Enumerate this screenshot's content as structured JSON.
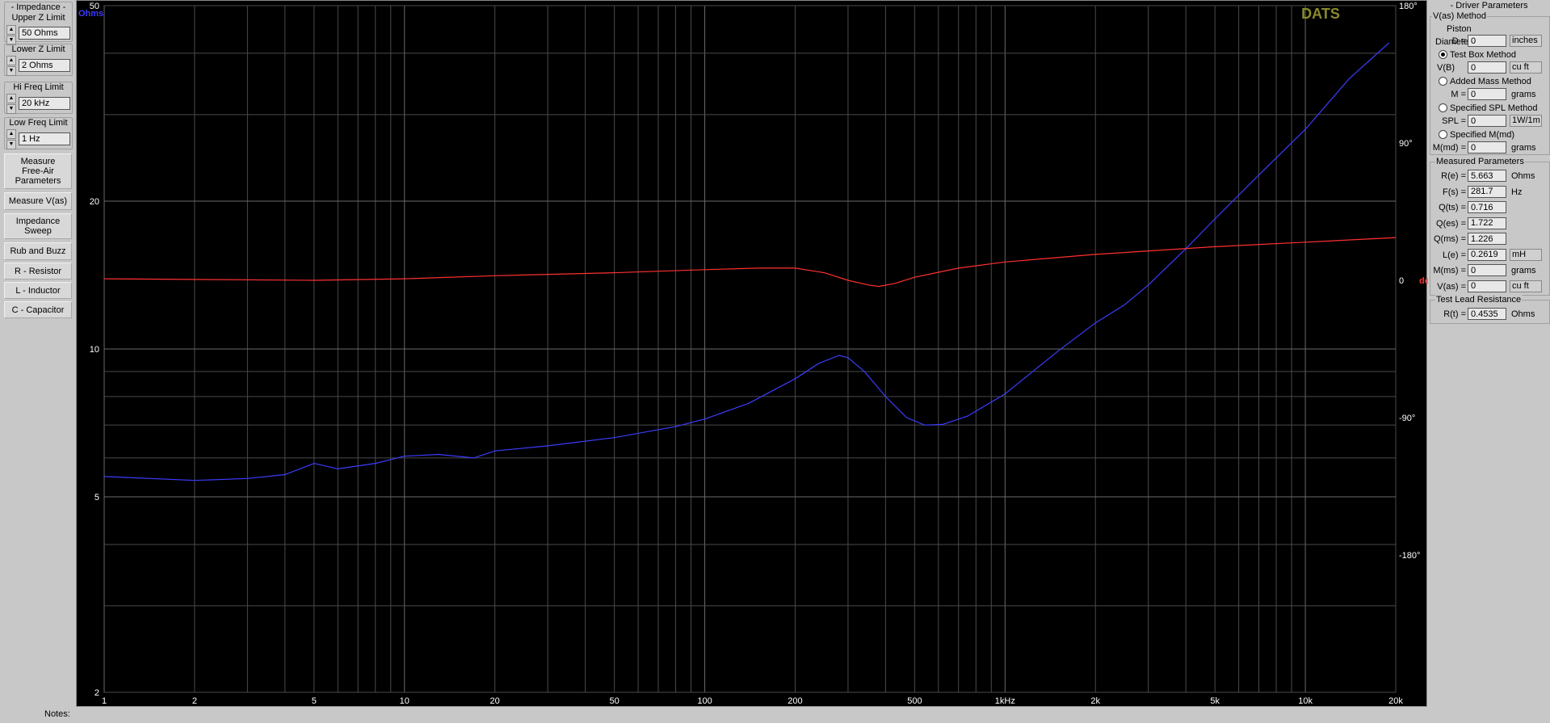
{
  "left_panel": {
    "groups": [
      {
        "label": "- Impedance -\nUpper Z Limit",
        "value": "50 Ohms"
      },
      {
        "label": "Lower Z Limit",
        "value": "2 Ohms"
      },
      {
        "label": "Hi Freq Limit",
        "value": "20 kHz"
      },
      {
        "label": "Low Freq Limit",
        "value": "1 Hz"
      }
    ],
    "buttons": [
      "Measure\nFree-Air\nParameters",
      "Measure V(as)",
      "Impedance\nSweep",
      "Rub and Buzz",
      "R - Resistor",
      "L - Inductor",
      "C - Capacitor"
    ],
    "spin_up": "▲",
    "spin_down": "▼",
    "notes_label": "Notes:"
  },
  "chart_data": {
    "type": "line",
    "brand": "DATS",
    "x_scale": "log",
    "xlim": [
      1,
      20000
    ],
    "x_ticks": [
      "1",
      "2",
      "5",
      "10",
      "20",
      "50",
      "100",
      "200",
      "500",
      "1kHz",
      "2k",
      "5k",
      "10k",
      "20k"
    ],
    "y_left_unit": "Ohms",
    "y_left_scale": "log",
    "ylim_left": [
      2,
      50
    ],
    "y_left_ticks": [
      "50",
      "20",
      "10",
      "5",
      "2"
    ],
    "y_right_unit": "deg",
    "ylim_right": [
      -270,
      180
    ],
    "y_right_ticks": [
      "180°",
      "90°",
      "0",
      "-90°",
      "-180°"
    ],
    "series": [
      {
        "axis": "left",
        "color": "#3c3cff",
        "points": [
          [
            1,
            5.5
          ],
          [
            2,
            5.4
          ],
          [
            3,
            5.45
          ],
          [
            4,
            5.55
          ],
          [
            5,
            5.85
          ],
          [
            6,
            5.7
          ],
          [
            8,
            5.85
          ],
          [
            10,
            6.05
          ],
          [
            13,
            6.1
          ],
          [
            17,
            6.0
          ],
          [
            20,
            6.2
          ],
          [
            30,
            6.35
          ],
          [
            50,
            6.6
          ],
          [
            80,
            6.95
          ],
          [
            100,
            7.2
          ],
          [
            140,
            7.75
          ],
          [
            200,
            8.7
          ],
          [
            240,
            9.35
          ],
          [
            280,
            9.7
          ],
          [
            300,
            9.6
          ],
          [
            340,
            9.0
          ],
          [
            400,
            8.0
          ],
          [
            470,
            7.25
          ],
          [
            540,
            7.0
          ],
          [
            620,
            7.02
          ],
          [
            750,
            7.3
          ],
          [
            1000,
            8.1
          ],
          [
            1500,
            9.9
          ],
          [
            2000,
            11.3
          ],
          [
            2500,
            12.3
          ],
          [
            3000,
            13.5
          ],
          [
            4000,
            16.0
          ],
          [
            5000,
            18.4
          ],
          [
            7000,
            22.6
          ],
          [
            10000,
            28.0
          ],
          [
            14000,
            35.5
          ],
          [
            19000,
            42.0
          ]
        ]
      },
      {
        "axis": "right",
        "color": "#ff3030",
        "points": [
          [
            1,
            1
          ],
          [
            5,
            0
          ],
          [
            10,
            1
          ],
          [
            20,
            3
          ],
          [
            50,
            5
          ],
          [
            100,
            7
          ],
          [
            150,
            8
          ],
          [
            200,
            8
          ],
          [
            250,
            5
          ],
          [
            300,
            0
          ],
          [
            350,
            -3
          ],
          [
            380,
            -4
          ],
          [
            430,
            -2
          ],
          [
            500,
            2
          ],
          [
            700,
            8
          ],
          [
            1000,
            12
          ],
          [
            2000,
            17
          ],
          [
            5000,
            22
          ],
          [
            10000,
            25
          ],
          [
            20000,
            28
          ]
        ]
      }
    ]
  },
  "right_panel": {
    "title": "- Driver Parameters",
    "vas_group": {
      "label": "V(as) Method",
      "piston_label": "Piston Diameter",
      "d_label": "D =",
      "d_value": "0",
      "d_unit": "inches",
      "test_box": "Test Box Method",
      "vb_label": "V(B)",
      "vb_value": "0",
      "vb_unit": "cu ft",
      "added_mass": "Added Mass Method",
      "m_label": "M =",
      "m_value": "0",
      "m_unit": "grams",
      "spl_method": "Specified SPL Method",
      "spl_label": "SPL =",
      "spl_value": "0",
      "spl_unit": "1W/1m",
      "mmd_method": "Specified M(md)",
      "mmd_label": "M(md) =",
      "mmd_value": "0",
      "mmd_unit": "grams"
    },
    "measured": {
      "label": "Measured Parameters",
      "rows": [
        {
          "label": "R(e) =",
          "value": "5.663",
          "unit": "Ohms"
        },
        {
          "label": "F(s) =",
          "value": "281.7",
          "unit": "Hz"
        },
        {
          "label": "Q(ts) =",
          "value": "0.716",
          "unit": ""
        },
        {
          "label": "Q(es) =",
          "value": "1.722",
          "unit": ""
        },
        {
          "label": "Q(ms) =",
          "value": "1.226",
          "unit": ""
        },
        {
          "label": "L(e) =",
          "value": "0.2619",
          "unit": "mH"
        },
        {
          "label": "M(ms) =",
          "value": "0",
          "unit": "grams"
        },
        {
          "label": "V(as) =",
          "value": "0",
          "unit": "cu ft"
        }
      ]
    },
    "lead": {
      "label": "Test Lead Resistance",
      "r_label": "R(t) =",
      "r_value": "0.4535",
      "r_unit": "Ohms"
    }
  },
  "colors": {
    "background": "#c8c8c8",
    "chart_bg": "#000000",
    "grid": "#4a4a4a",
    "impedance": "#3c3cff",
    "phase": "#ff3030",
    "brand": "#8a8a2a"
  }
}
